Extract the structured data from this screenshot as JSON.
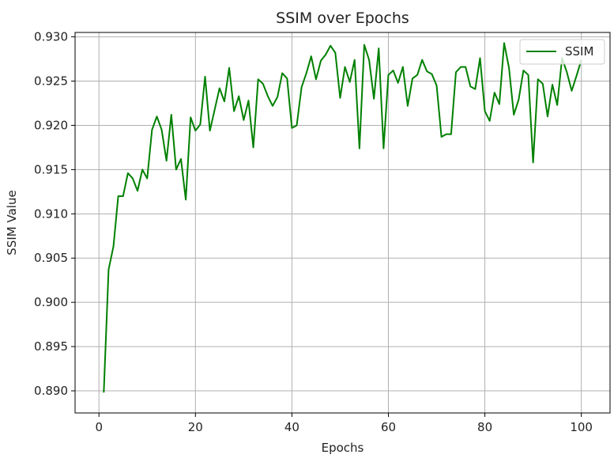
{
  "chart_data": {
    "type": "line",
    "title": "SSIM over Epochs",
    "xlabel": "Epochs",
    "ylabel": "SSIM Value",
    "xlim": [
      -4.95,
      105.95
    ],
    "ylim": [
      0.8875,
      0.9305
    ],
    "xticks": [
      0,
      20,
      40,
      60,
      80,
      100
    ],
    "xtick_labels": [
      "0",
      "20",
      "40",
      "60",
      "80",
      "100"
    ],
    "yticks": [
      0.89,
      0.895,
      0.9,
      0.905,
      0.91,
      0.915,
      0.92,
      0.925,
      0.93
    ],
    "ytick_labels": [
      "0.890",
      "0.895",
      "0.900",
      "0.905",
      "0.910",
      "0.915",
      "0.920",
      "0.925",
      "0.930"
    ],
    "grid": true,
    "legend": {
      "position": "top-right"
    },
    "series": [
      {
        "name": "SSIM",
        "color": "#008000",
        "x": [
          1,
          2,
          3,
          4,
          5,
          6,
          7,
          8,
          9,
          10,
          11,
          12,
          13,
          14,
          15,
          16,
          17,
          18,
          19,
          20,
          21,
          22,
          23,
          24,
          25,
          26,
          27,
          28,
          29,
          30,
          31,
          32,
          33,
          34,
          35,
          36,
          37,
          38,
          39,
          40,
          41,
          42,
          43,
          44,
          45,
          46,
          47,
          48,
          49,
          50,
          51,
          52,
          53,
          54,
          55,
          56,
          57,
          58,
          59,
          60,
          61,
          62,
          63,
          64,
          65,
          66,
          67,
          68,
          69,
          70,
          71,
          72,
          73,
          74,
          75,
          76,
          77,
          78,
          79,
          80,
          81,
          82,
          83,
          84,
          85,
          86,
          87,
          88,
          89,
          90,
          91,
          92,
          93,
          94,
          95,
          96,
          97,
          98,
          99,
          100
        ],
        "y": [
          0.8898,
          0.9037,
          0.9063,
          0.912,
          0.912,
          0.9146,
          0.914,
          0.9126,
          0.915,
          0.914,
          0.9195,
          0.921,
          0.9195,
          0.916,
          0.9212,
          0.915,
          0.9162,
          0.9116,
          0.9209,
          0.9194,
          0.9201,
          0.9255,
          0.9194,
          0.9218,
          0.9242,
          0.9227,
          0.9265,
          0.9216,
          0.9233,
          0.9206,
          0.9228,
          0.9175,
          0.9252,
          0.9247,
          0.9233,
          0.9222,
          0.9232,
          0.9259,
          0.9253,
          0.9197,
          0.92,
          0.9243,
          0.9259,
          0.9278,
          0.9252,
          0.9273,
          0.928,
          0.929,
          0.9282,
          0.9231,
          0.9266,
          0.9249,
          0.9274,
          0.9174,
          0.9291,
          0.9274,
          0.923,
          0.9287,
          0.9174,
          0.9257,
          0.9262,
          0.9248,
          0.9266,
          0.9222,
          0.9253,
          0.9257,
          0.9274,
          0.9261,
          0.9258,
          0.9245,
          0.9187,
          0.919,
          0.919,
          0.926,
          0.9266,
          0.9266,
          0.9244,
          0.9241,
          0.9276,
          0.9216,
          0.9205,
          0.9237,
          0.9224,
          0.9293,
          0.9265,
          0.9212,
          0.9229,
          0.9262,
          0.9257,
          0.9158,
          0.9252,
          0.9247,
          0.921,
          0.9246,
          0.9223,
          0.9276,
          0.926,
          0.9239,
          0.9256,
          0.9274
        ]
      }
    ]
  }
}
